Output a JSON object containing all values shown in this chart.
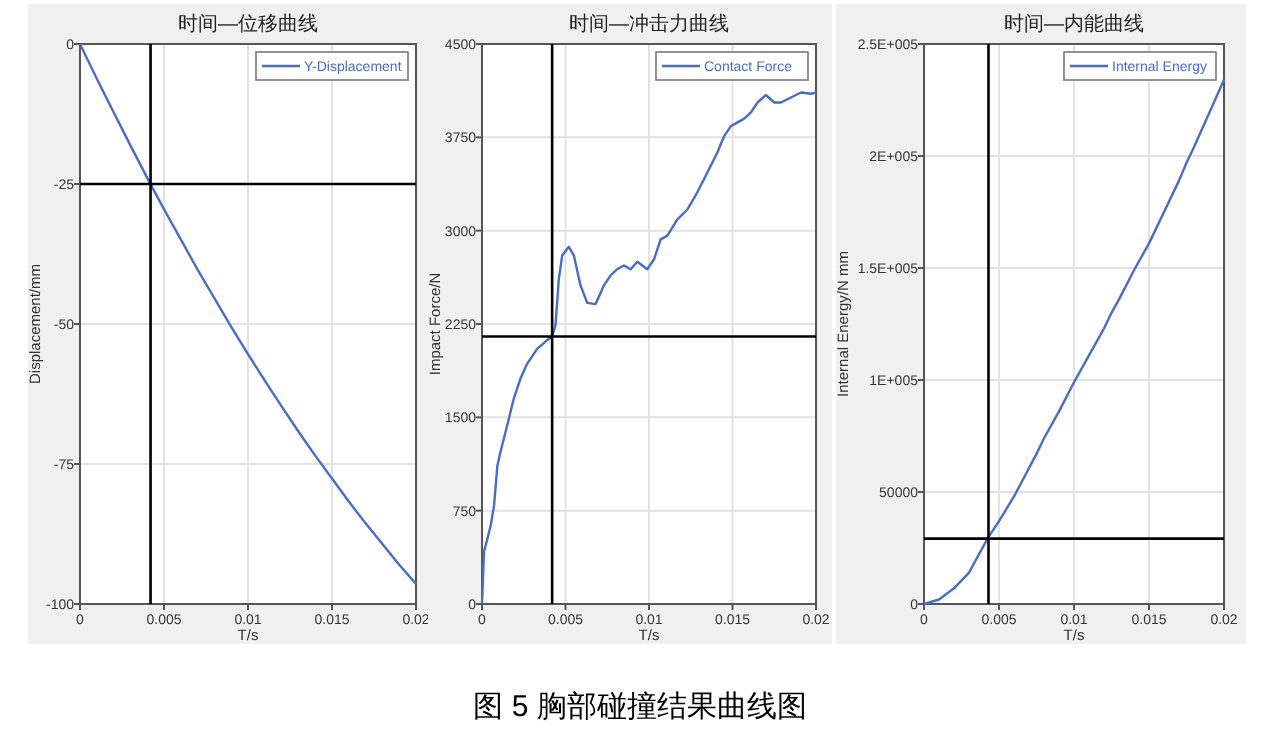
{
  "chart_data": [
    {
      "type": "line",
      "title": "时间—位移曲线",
      "xlabel": "T/s",
      "ylabel": "Displacement/mm",
      "x": [
        0,
        0.001,
        0.002,
        0.003,
        0.004,
        0.005,
        0.006,
        0.007,
        0.008,
        0.009,
        0.01,
        0.011,
        0.012,
        0.013,
        0.014,
        0.015,
        0.016,
        0.017,
        0.018,
        0.019,
        0.02
      ],
      "series": [
        {
          "name": "Y-Displacement",
          "color": "#4a6cc4",
          "values": [
            0,
            -6.2,
            -12.2,
            -18.1,
            -23.9,
            -29.5,
            -34.9,
            -40.3,
            -45.4,
            -50.5,
            -55.4,
            -60.1,
            -64.7,
            -69.2,
            -73.5,
            -77.6,
            -81.7,
            -85.6,
            -89.3,
            -93.0,
            -96.4
          ]
        }
      ],
      "xlim": [
        0,
        0.02
      ],
      "xticks": [
        0,
        0.005,
        0.01,
        0.015,
        0.02
      ],
      "ylim": [
        -100,
        0
      ],
      "yticks": [
        0,
        -25,
        -50,
        -75,
        -100
      ],
      "ref_lines": [
        {
          "axis": "x",
          "value": 0.0042,
          "color": "#000000"
        },
        {
          "axis": "y",
          "value": -25,
          "color": "#000000"
        }
      ],
      "grid": true,
      "legend": "top right"
    },
    {
      "type": "line",
      "title": "时间—冲击力曲线",
      "xlabel": "T/s",
      "ylabel": "Impact Force/N",
      "x": [
        0,
        0.00012,
        0.00024,
        0.00052,
        0.00072,
        0.00092,
        0.0011,
        0.0015,
        0.0019,
        0.0023,
        0.0027,
        0.0033,
        0.0039,
        0.0042,
        0.0044,
        0.0046,
        0.0048,
        0.0052,
        0.0055,
        0.0059,
        0.0063,
        0.0068,
        0.0073,
        0.0077,
        0.0081,
        0.0085,
        0.0089,
        0.0093,
        0.0099,
        0.0103,
        0.0107,
        0.0111,
        0.0117,
        0.0123,
        0.0129,
        0.0135,
        0.0141,
        0.0145,
        0.0149,
        0.0153,
        0.0157,
        0.0161,
        0.0165,
        0.017,
        0.0175,
        0.0179,
        0.0185,
        0.0191,
        0.0197,
        0.02
      ],
      "series": [
        {
          "name": "Contact Force",
          "color": "#4a6cc4",
          "values": [
            0,
            420,
            480,
            630,
            790,
            1110,
            1220,
            1430,
            1650,
            1810,
            1930,
            2050,
            2120,
            2150,
            2240,
            2610,
            2800,
            2870,
            2800,
            2560,
            2420,
            2410,
            2560,
            2640,
            2690,
            2720,
            2690,
            2750,
            2690,
            2770,
            2930,
            2960,
            3090,
            3170,
            3310,
            3470,
            3630,
            3760,
            3840,
            3870,
            3900,
            3950,
            4030,
            4090,
            4030,
            4030,
            4070,
            4110,
            4100,
            4110
          ]
        }
      ],
      "xlim": [
        0,
        0.02
      ],
      "xticks": [
        0,
        0.005,
        0.01,
        0.015,
        0.02
      ],
      "ylim": [
        0,
        4500
      ],
      "yticks": [
        0,
        750,
        1500,
        2250,
        3000,
        3750,
        4500
      ],
      "ref_lines": [
        {
          "axis": "x",
          "value": 0.0042,
          "color": "#000000"
        },
        {
          "axis": "y",
          "value": 2150,
          "color": "#000000"
        }
      ],
      "grid": true,
      "legend": "top right",
      "annotations": [
        "图 5  胸部碰撞结果曲线图"
      ]
    },
    {
      "type": "line",
      "title": "时间—内能曲线",
      "xlabel": "T/s",
      "ylabel": "Internal Energy/N mm",
      "x": [
        0,
        0.001,
        0.002,
        0.003,
        0.0043,
        0.005,
        0.006,
        0.0075,
        0.008,
        0.009,
        0.01,
        0.011,
        0.012,
        0.0125,
        0.013,
        0.014,
        0.015,
        0.016,
        0.017,
        0.0175,
        0.018,
        0.019,
        0.02
      ],
      "series": [
        {
          "name": "Internal Energy",
          "color": "#4a6cc4",
          "values": [
            0,
            2000,
            7000,
            14000,
            30000,
            37000,
            48000,
            67000,
            74000,
            86000,
            99000,
            111000,
            123000,
            130000,
            136000,
            149000,
            161000,
            175000,
            189000,
            197000,
            204000,
            219000,
            234000
          ]
        }
      ],
      "xlim": [
        0,
        0.02
      ],
      "xticks": [
        0,
        0.005,
        0.01,
        0.015,
        0.02
      ],
      "ylim": [
        0,
        250000
      ],
      "yticks": [
        0,
        50000,
        {
          "value": 100000,
          "label": "1E+005"
        },
        {
          "value": 150000,
          "label": "1.5E+005"
        },
        {
          "value": 200000,
          "label": "2E+005"
        },
        {
          "value": 250000,
          "label": "2.5E+005"
        }
      ],
      "ref_lines": [
        {
          "axis": "x",
          "value": 0.0043,
          "color": "#000000"
        },
        {
          "axis": "y",
          "value": 29200,
          "color": "#000000"
        }
      ],
      "grid": true,
      "legend": "top right"
    }
  ]
}
